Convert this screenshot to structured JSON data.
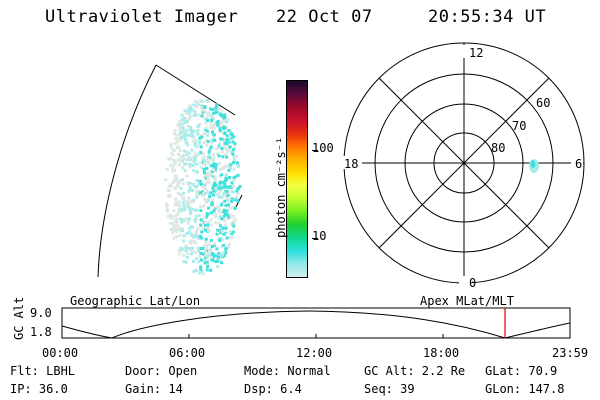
{
  "header": {
    "instrument": "Ultraviolet Imager",
    "date": "22 Oct 07",
    "time": "20:55:34 UT"
  },
  "colorbar": {
    "unit_label": "photon cm⁻²s⁻¹",
    "ticks": [
      "100",
      "10"
    ],
    "scale": "log",
    "colors": [
      "#1a0a2e",
      "#5a0a3a",
      "#9a0a2a",
      "#c8102e",
      "#e83010",
      "#ff7000",
      "#ffb000",
      "#ffe000",
      "#f4ff40",
      "#c0ff30",
      "#70ee20",
      "#20d030",
      "#10d890",
      "#30e0e0",
      "#90e8e8",
      "#d0eeee"
    ]
  },
  "polar_plot": {
    "mlt_labels": {
      "top": "12",
      "left": "18",
      "right": "6",
      "bottom": "0"
    },
    "lat_labels": [
      "60",
      "70",
      "80"
    ]
  },
  "timeline": {
    "left_label": "Geographic Lat/Lon",
    "right_label": "Apex MLat/MLT",
    "y_axis_label": "GC Alt",
    "y_ticks": [
      "9.0",
      "1.8"
    ],
    "x_ticks": [
      "00:00",
      "06:00",
      "12:00",
      "18:00",
      "23:59"
    ],
    "marker_color": "#e00000"
  },
  "info": {
    "row1": [
      {
        "key": "flt",
        "text": "Flt: LBHL"
      },
      {
        "key": "door",
        "text": "Door: Open"
      },
      {
        "key": "mode",
        "text": "Mode: Normal"
      },
      {
        "key": "gcalt",
        "text": "GC Alt: 2.2 Re"
      },
      {
        "key": "glat",
        "text": "GLat:  70.9"
      }
    ],
    "row2": [
      {
        "key": "ip",
        "text": "IP: 36.0"
      },
      {
        "key": "gain",
        "text": "Gain: 14"
      },
      {
        "key": "dsp",
        "text": "Dsp:    6.4"
      },
      {
        "key": "seq",
        "text": "Seq: 39"
      },
      {
        "key": "glon",
        "text": "GLon: 147.8"
      }
    ]
  },
  "colors": {
    "aurora_main": "#40e0dc",
    "aurora_light": "#a8ecec",
    "aurora_faint": "#dde8e4"
  }
}
